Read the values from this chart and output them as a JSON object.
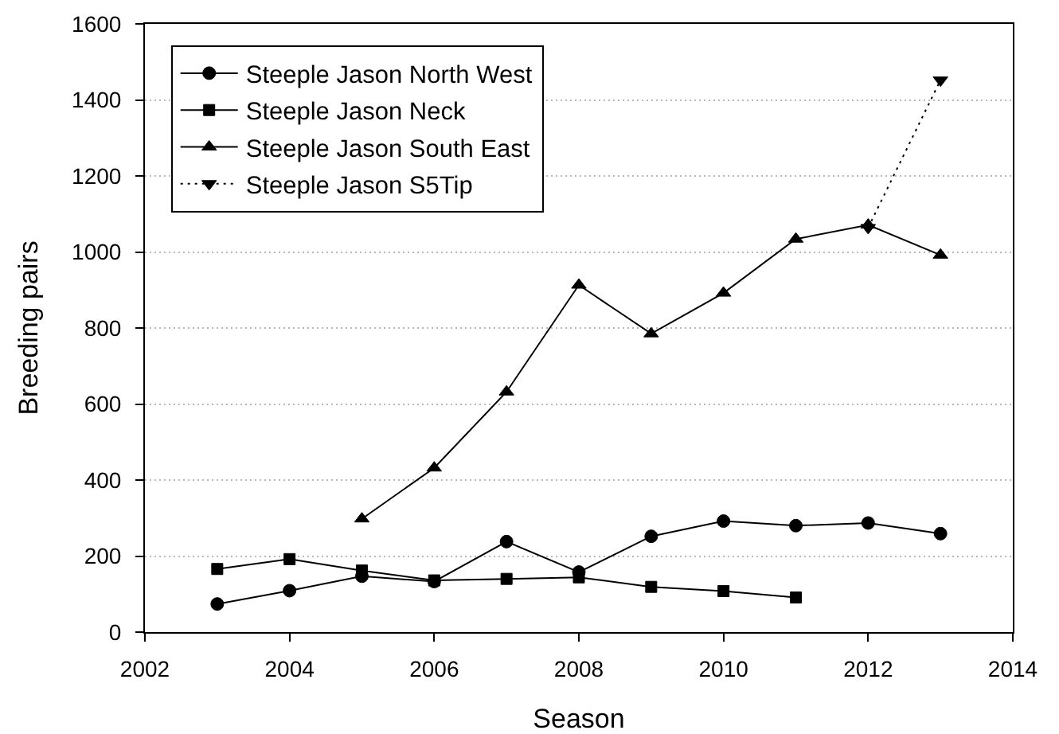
{
  "chart_data": {
    "type": "line",
    "xlabel": "Season",
    "ylabel": "Breeding pairs",
    "xlim": [
      2002,
      2014
    ],
    "xticks": [
      2002,
      2004,
      2006,
      2008,
      2010,
      2012,
      2014
    ],
    "ylim": [
      0,
      1600
    ],
    "yticks": [
      0,
      200,
      400,
      600,
      800,
      1000,
      1200,
      1400,
      1600
    ],
    "grid": "y",
    "legend": "top left",
    "series": [
      {
        "name": "Steeple Jason North West",
        "color": "#000000",
        "marker": "circle",
        "line_style": "solid",
        "x": [
          2003,
          2004,
          2005,
          2006,
          2007,
          2008,
          2009,
          2010,
          2011,
          2012,
          2013
        ],
        "values": [
          74,
          109,
          147,
          133,
          238,
          158,
          252,
          292,
          280,
          287,
          259
        ]
      },
      {
        "name": "Steeple Jason Neck",
        "color": "#000000",
        "marker": "square",
        "line_style": "solid",
        "x": [
          2003,
          2004,
          2005,
          2006,
          2007,
          2008,
          2009,
          2010,
          2011
        ],
        "values": [
          166,
          192,
          162,
          136,
          140,
          144,
          119,
          108,
          91
        ]
      },
      {
        "name": "Steeple Jason South East",
        "color": "#000000",
        "marker": "triangle",
        "line_style": "solid",
        "x": [
          2005,
          2006,
          2007,
          2008,
          2009,
          2010,
          2011,
          2012,
          2013
        ],
        "values": [
          298,
          432,
          632,
          913,
          785,
          892,
          1034,
          1071,
          992
        ]
      },
      {
        "name": "Steeple Jason S5Tip",
        "color": "#000000",
        "marker": "triangle-down",
        "line_style": "dotted",
        "x": [
          2012,
          2013
        ],
        "values": [
          1064,
          1452
        ]
      }
    ]
  }
}
